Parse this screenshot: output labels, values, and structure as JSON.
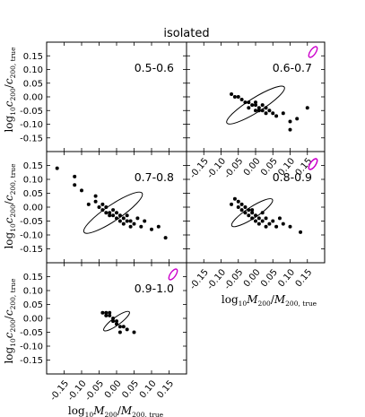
{
  "figure": {
    "title": "isolated",
    "ylabel": {
      "main": "log",
      "sub10": "10",
      "c": "c",
      "sub200": "200",
      "slash": "/",
      "c2": "c",
      "sub200true": "200, true"
    },
    "xlabel": {
      "main": "log",
      "sub10": "10",
      "M": "M",
      "sub200": "200",
      "slash": "/",
      "M2": "M",
      "sub200true": "200, true"
    }
  },
  "colors": {
    "ellipse": "#000000",
    "points": "#000000",
    "marker": "#cc00cc"
  },
  "chart_data": [
    {
      "type": "scatter",
      "panel_label": "0.5-0.6",
      "xlim": [
        -0.2,
        0.2
      ],
      "ylim": [
        -0.2,
        0.2
      ],
      "xticks": [
        "-0.15",
        "-0.10",
        "-0.05",
        "0.00",
        "0.05",
        "0.10",
        "0.15"
      ],
      "yticks": [
        "0.15",
        "0.10",
        "0.05",
        "0.00",
        "-0.05",
        "-0.10",
        "-0.15"
      ],
      "points": [],
      "ellipse": null
    },
    {
      "type": "scatter",
      "panel_label": "0.6-0.7",
      "xlim": [
        -0.2,
        0.2
      ],
      "ylim": [
        -0.2,
        0.2
      ],
      "xticks": [
        "-0.15",
        "-0.10",
        "-0.05",
        "0.00",
        "0.05",
        "0.10",
        "0.15"
      ],
      "yticks": [
        "0.15",
        "0.10",
        "0.05",
        "0.00",
        "-0.05",
        "-0.10",
        "-0.15"
      ],
      "points": [
        [
          -0.07,
          0.01
        ],
        [
          -0.05,
          0.0
        ],
        [
          -0.04,
          -0.01
        ],
        [
          -0.02,
          -0.02
        ],
        [
          -0.01,
          -0.03
        ],
        [
          0.0,
          -0.03
        ],
        [
          0.01,
          -0.04
        ],
        [
          0.02,
          -0.05
        ],
        [
          0.03,
          -0.06
        ],
        [
          0.04,
          -0.05
        ],
        [
          0.05,
          -0.06
        ],
        [
          -0.03,
          -0.02
        ],
        [
          0.0,
          -0.05
        ],
        [
          0.02,
          -0.03
        ],
        [
          -0.06,
          0.0
        ],
        [
          0.0,
          -0.02
        ],
        [
          0.01,
          -0.05
        ],
        [
          0.06,
          -0.07
        ],
        [
          0.08,
          -0.06
        ],
        [
          0.1,
          -0.09
        ],
        [
          0.12,
          -0.08
        ],
        [
          0.1,
          -0.12
        ],
        [
          0.15,
          -0.04
        ],
        [
          0.03,
          -0.04
        ],
        [
          -0.02,
          -0.04
        ]
      ],
      "ellipse": {
        "cx": 0.0,
        "cy": -0.03,
        "rx": 0.098,
        "ry": 0.026,
        "angle": -32
      }
    },
    {
      "type": "scatter",
      "panel_label": "0.7-0.8",
      "xlim": [
        -0.2,
        0.2
      ],
      "ylim": [
        -0.2,
        0.2
      ],
      "xticks": [
        "-0.15",
        "-0.10",
        "-0.05",
        "0.00",
        "0.05",
        "0.10",
        "0.15"
      ],
      "yticks": [
        "0.15",
        "0.10",
        "0.05",
        "0.00",
        "-0.05",
        "-0.10",
        "-0.15"
      ],
      "points": [
        [
          -0.17,
          0.14
        ],
        [
          -0.12,
          0.11
        ],
        [
          -0.12,
          0.08
        ],
        [
          -0.1,
          0.06
        ],
        [
          -0.08,
          0.01
        ],
        [
          -0.06,
          0.04
        ],
        [
          -0.06,
          0.02
        ],
        [
          -0.05,
          0.0
        ],
        [
          -0.04,
          -0.01
        ],
        [
          -0.03,
          -0.02
        ],
        [
          -0.03,
          0.0
        ],
        [
          -0.02,
          -0.02
        ],
        [
          -0.02,
          -0.03
        ],
        [
          -0.01,
          -0.03
        ],
        [
          0.0,
          -0.04
        ],
        [
          0.0,
          -0.02
        ],
        [
          0.01,
          -0.05
        ],
        [
          0.02,
          -0.04
        ],
        [
          0.02,
          -0.06
        ],
        [
          0.03,
          -0.05
        ],
        [
          0.04,
          -0.05
        ],
        [
          0.04,
          -0.07
        ],
        [
          0.05,
          -0.06
        ],
        [
          0.06,
          -0.04
        ],
        [
          0.07,
          -0.07
        ],
        [
          0.08,
          -0.05
        ],
        [
          0.1,
          -0.08
        ],
        [
          0.12,
          -0.07
        ],
        [
          0.14,
          -0.11
        ],
        [
          -0.04,
          0.01
        ],
        [
          -0.01,
          -0.01
        ],
        [
          0.03,
          -0.03
        ],
        [
          0.01,
          -0.03
        ]
      ],
      "ellipse": {
        "cx": -0.01,
        "cy": -0.02,
        "rx": 0.1,
        "ry": 0.028,
        "angle": -34
      }
    },
    {
      "type": "scatter",
      "panel_label": "0.8-0.9",
      "xlim": [
        -0.2,
        0.2
      ],
      "ylim": [
        -0.2,
        0.2
      ],
      "xticks": [
        "-0.15",
        "-0.10",
        "-0.05",
        "0.00",
        "0.05",
        "0.10",
        "0.15"
      ],
      "yticks": [
        "0.15",
        "0.10",
        "0.05",
        "0.00",
        "-0.05",
        "-0.10",
        "-0.15"
      ],
      "points": [
        [
          -0.06,
          0.03
        ],
        [
          -0.05,
          0.02
        ],
        [
          -0.05,
          0.0
        ],
        [
          -0.04,
          0.01
        ],
        [
          -0.04,
          -0.01
        ],
        [
          -0.03,
          0.0
        ],
        [
          -0.03,
          -0.02
        ],
        [
          -0.02,
          -0.01
        ],
        [
          -0.02,
          -0.03
        ],
        [
          -0.01,
          -0.02
        ],
        [
          -0.01,
          -0.04
        ],
        [
          0.0,
          -0.03
        ],
        [
          0.0,
          -0.05
        ],
        [
          0.01,
          -0.04
        ],
        [
          0.01,
          -0.06
        ],
        [
          0.02,
          -0.05
        ],
        [
          0.03,
          -0.04
        ],
        [
          0.03,
          -0.07
        ],
        [
          0.04,
          -0.06
        ],
        [
          0.05,
          -0.05
        ],
        [
          0.06,
          -0.07
        ],
        [
          0.07,
          -0.04
        ],
        [
          0.08,
          -0.06
        ],
        [
          0.1,
          -0.07
        ],
        [
          0.13,
          -0.09
        ],
        [
          -0.07,
          0.01
        ],
        [
          0.02,
          -0.02
        ],
        [
          -0.01,
          -0.01
        ]
      ],
      "ellipse": {
        "cx": -0.01,
        "cy": -0.02,
        "rx": 0.07,
        "ry": 0.02,
        "angle": -33
      }
    },
    {
      "type": "scatter",
      "panel_label": "0.9-1.0",
      "xlim": [
        -0.2,
        0.2
      ],
      "ylim": [
        -0.2,
        0.2
      ],
      "xticks": [
        "-0.15",
        "-0.10",
        "-0.05",
        "0.00",
        "0.05",
        "0.10",
        "0.15"
      ],
      "yticks": [
        "0.15",
        "0.10",
        "0.05",
        "0.00",
        "-0.05",
        "-0.10",
        "-0.15"
      ],
      "points": [
        [
          -0.04,
          0.02
        ],
        [
          -0.03,
          0.02
        ],
        [
          -0.02,
          0.01
        ],
        [
          -0.02,
          0.02
        ],
        [
          -0.01,
          0.0
        ],
        [
          0.0,
          -0.01
        ],
        [
          0.0,
          -0.02
        ],
        [
          0.01,
          -0.03
        ],
        [
          0.01,
          -0.05
        ],
        [
          0.03,
          -0.04
        ],
        [
          0.05,
          -0.05
        ],
        [
          -0.01,
          -0.01
        ],
        [
          0.02,
          -0.03
        ],
        [
          -0.03,
          0.01
        ]
      ],
      "ellipse": {
        "cx": 0.0,
        "cy": -0.01,
        "rx": 0.045,
        "ry": 0.014,
        "angle": -36
      }
    }
  ]
}
